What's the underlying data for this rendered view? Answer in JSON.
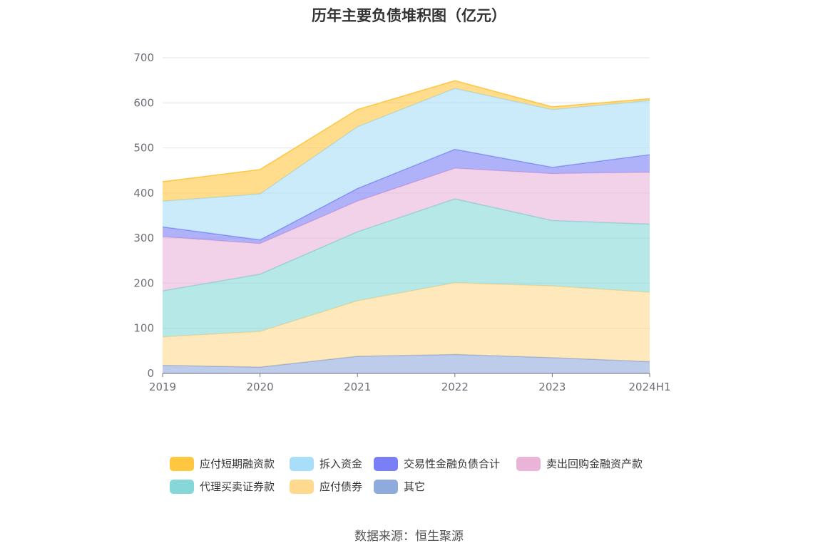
{
  "chart_data": {
    "type": "area",
    "stacked": true,
    "title": "历年主要负债堆积图（亿元）",
    "x": [
      "2019",
      "2020",
      "2021",
      "2022",
      "2023",
      "2024H1"
    ],
    "ylim": [
      0,
      700
    ],
    "yticks": [
      0,
      100,
      200,
      300,
      400,
      500,
      600,
      700
    ],
    "grid": "horizontal",
    "legend_position": "bottom",
    "series": [
      {
        "name": "其它",
        "color": "#8faadc",
        "values": [
          18,
          14,
          38,
          42,
          35,
          26
        ]
      },
      {
        "name": "应付债券",
        "color": "#ffd98e",
        "values": [
          63,
          79,
          123,
          159,
          159,
          154
        ]
      },
      {
        "name": "代理买卖证券款",
        "color": "#86d8d8",
        "values": [
          102,
          127,
          153,
          186,
          145,
          151
        ]
      },
      {
        "name": "卖出回购金融资产款",
        "color": "#e9b4d8",
        "values": [
          120,
          68,
          68,
          68,
          104,
          115
        ]
      },
      {
        "name": "交易性金融负债合计",
        "color": "#7b7ff5",
        "values": [
          22,
          8,
          28,
          42,
          14,
          39
        ]
      },
      {
        "name": "拆入资金",
        "color": "#a9def8",
        "values": [
          57,
          102,
          137,
          135,
          128,
          120
        ]
      },
      {
        "name": "应付短期融资款",
        "color": "#ffc640",
        "values": [
          43,
          54,
          38,
          17,
          6,
          4
        ]
      }
    ]
  },
  "legend": [
    {
      "name": "应付短期融资款",
      "color": "#ffc640"
    },
    {
      "name": "拆入资金",
      "color": "#a9def8"
    },
    {
      "name": "交易性金融负债合计",
      "color": "#7b7ff5"
    },
    {
      "name": "卖出回购金融资产款",
      "color": "#e9b4d8"
    },
    {
      "name": "代理买卖证券款",
      "color": "#86d8d8"
    },
    {
      "name": "应付债券",
      "color": "#ffd98e"
    },
    {
      "name": "其它",
      "color": "#8faadc"
    }
  ],
  "source": "数据来源：恒生聚源"
}
